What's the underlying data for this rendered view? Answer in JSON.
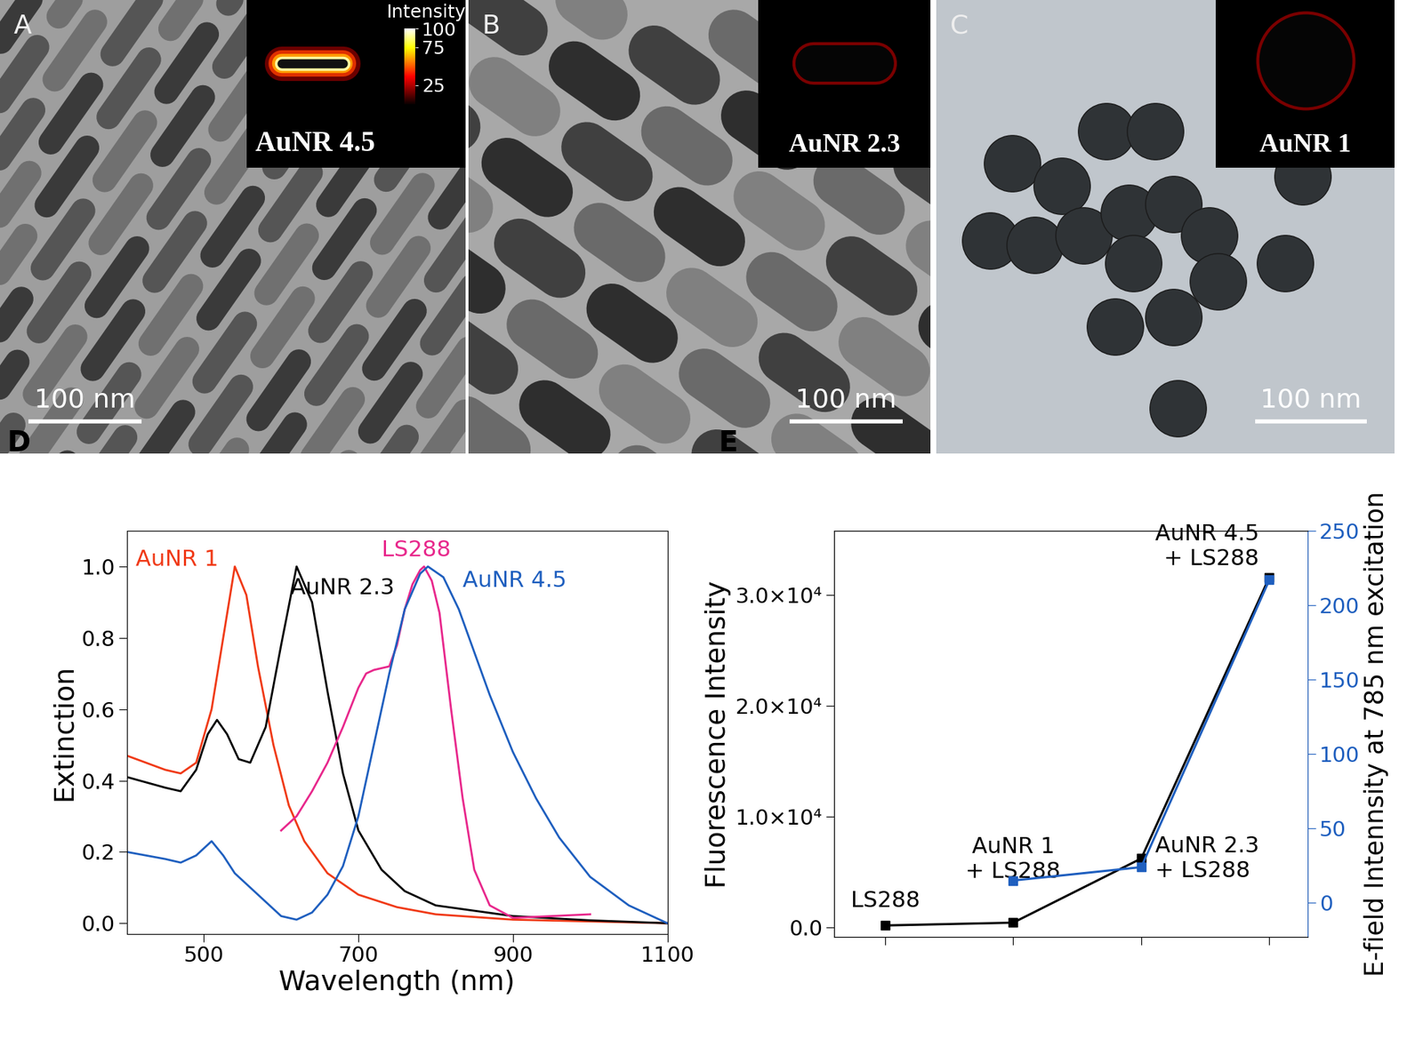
{
  "images": [
    {
      "letter": "A",
      "scale_bar_nm": 100,
      "scale_bar": "100 nm",
      "inset_label": "AuNR 4.5",
      "colorbar": {
        "label": "Intensity",
        "range": [
          0,
          100
        ],
        "ticks": [
          100,
          75,
          25
        ]
      }
    },
    {
      "letter": "B",
      "scale_bar_nm": 100,
      "scale_bar": "100 nm",
      "inset_label": "AuNR 2.3"
    },
    {
      "letter": "C",
      "scale_bar_nm": 100,
      "scale_bar": "100 nm",
      "inset_label": "AuNR 1"
    }
  ],
  "chart_data": [
    {
      "type": "line",
      "title": "D",
      "x_label": "Wavelength (nm)",
      "y_label": "Extinction",
      "xlim": [
        400,
        1100
      ],
      "xticks": [
        500,
        700,
        900,
        1100
      ],
      "ylim": [
        -0.03,
        1.1
      ],
      "yticks": [
        0.0,
        0.2,
        0.4,
        0.6,
        0.8,
        1.0
      ],
      "series": [
        {
          "name": "AuNR 1",
          "color": "#f03a17",
          "line_style": "solid",
          "x": [
            400,
            450,
            470,
            490,
            510,
            525,
            540,
            555,
            570,
            590,
            610,
            630,
            660,
            700,
            750,
            800,
            900,
            1000,
            1100
          ],
          "values": [
            0.47,
            0.43,
            0.42,
            0.45,
            0.6,
            0.8,
            1.0,
            0.92,
            0.72,
            0.5,
            0.33,
            0.23,
            0.14,
            0.08,
            0.045,
            0.025,
            0.01,
            0.005,
            0.0
          ]
        },
        {
          "name": "AuNR 2.3",
          "color": "#000000",
          "line_style": "solid",
          "x": [
            400,
            450,
            470,
            490,
            505,
            517,
            530,
            545,
            560,
            580,
            600,
            620,
            640,
            660,
            680,
            700,
            730,
            760,
            800,
            850,
            900,
            1000,
            1100
          ],
          "values": [
            0.41,
            0.38,
            0.37,
            0.43,
            0.53,
            0.57,
            0.53,
            0.46,
            0.45,
            0.55,
            0.78,
            1.0,
            0.9,
            0.65,
            0.42,
            0.26,
            0.15,
            0.09,
            0.05,
            0.035,
            0.02,
            0.008,
            0.0
          ]
        },
        {
          "name": "LS288",
          "color": "#e8288c",
          "line_style": "solid",
          "x": [
            600,
            620,
            640,
            660,
            680,
            700,
            710,
            720,
            740,
            750,
            760,
            770,
            780,
            785,
            795,
            805,
            820,
            835,
            850,
            870,
            900,
            950,
            1000
          ],
          "values": [
            0.26,
            0.3,
            0.37,
            0.45,
            0.55,
            0.66,
            0.7,
            0.71,
            0.72,
            0.78,
            0.88,
            0.95,
            0.99,
            1.0,
            0.96,
            0.87,
            0.6,
            0.35,
            0.15,
            0.05,
            0.015,
            0.02,
            0.025
          ]
        },
        {
          "name": "AuNR 4.5",
          "color": "#1f5fbf",
          "line_style": "solid",
          "x": [
            400,
            450,
            470,
            490,
            510,
            525,
            540,
            560,
            580,
            600,
            620,
            640,
            660,
            680,
            700,
            720,
            740,
            760,
            780,
            790,
            810,
            830,
            850,
            870,
            900,
            930,
            960,
            1000,
            1050,
            1100
          ],
          "values": [
            0.2,
            0.18,
            0.17,
            0.19,
            0.23,
            0.19,
            0.14,
            0.1,
            0.06,
            0.02,
            0.01,
            0.03,
            0.08,
            0.16,
            0.3,
            0.5,
            0.7,
            0.88,
            0.98,
            1.0,
            0.97,
            0.88,
            0.76,
            0.64,
            0.48,
            0.35,
            0.24,
            0.13,
            0.05,
            0.0
          ]
        }
      ]
    },
    {
      "type": "line",
      "title": "E",
      "tick_labels": "y",
      "categories": [
        "LS288",
        "AuNR 1\n+ LS288",
        "AuNR 2.3\n+ LS288",
        "AuNR 4.5\n+ LS288"
      ],
      "ylim": [
        -900,
        35800
      ],
      "yticks": [
        {
          "value": 0,
          "label": "0.0"
        },
        {
          "value": 10000,
          "label": "1.0×10⁴"
        },
        {
          "value": 20000,
          "label": "2.0×10⁴"
        },
        {
          "value": 30000,
          "label": "3.0×10⁴"
        }
      ],
      "y2lim": [
        -23,
        250
      ],
      "y2ticks": [
        0,
        50,
        100,
        150,
        200,
        250
      ],
      "series": [
        {
          "name": "Fluorescence Intensity",
          "color": "#000000",
          "marker": "square",
          "line_style": "solid",
          "values": [
            150,
            400,
            6200,
            31600
          ]
        },
        {
          "name": "E-field Intennsity at 785 nm excitation",
          "axis": "y2",
          "color": "#1f5fbf",
          "marker": "square",
          "line_style": "solid",
          "values": [
            null,
            15,
            24,
            217
          ]
        }
      ]
    }
  ]
}
